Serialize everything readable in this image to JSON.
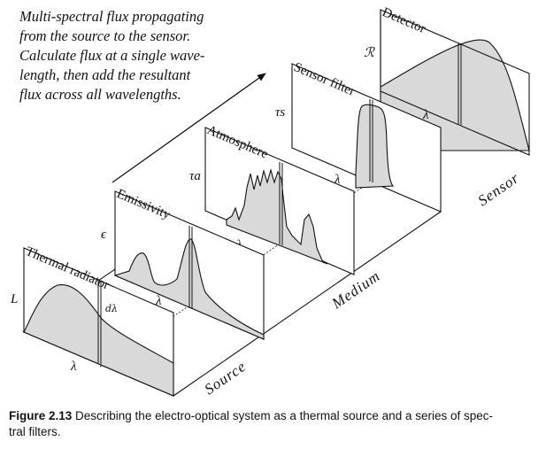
{
  "note": {
    "lines": [
      "Multi-spectral flux propagating",
      "from the source to the sensor.",
      "Calculate flux at a single wave-",
      "length, then add the resultant",
      "flux across all wavelengths."
    ]
  },
  "panels": {
    "thermal_radiator": {
      "title": "Thermal radiator",
      "y_symbol": "L",
      "x_symbol": "λ",
      "slice_symbol": "dλ"
    },
    "emissivity": {
      "title": "Emissivity",
      "y_symbol": "ϵ",
      "x_symbol": "λ"
    },
    "atmosphere": {
      "title": "Atmosphere",
      "y_symbol": "τa",
      "x_symbol": "λ"
    },
    "sensor_filter": {
      "title": "Sensor filter",
      "y_symbol": "τs",
      "x_symbol": "λ"
    },
    "detector": {
      "title": "Detector",
      "y_symbol": "ℛ",
      "x_symbol": "λ"
    }
  },
  "stages": {
    "source": "Source",
    "medium": "Medium",
    "sensor": "Sensor"
  },
  "caption": {
    "label": "Figure 2.13",
    "line1": " Describing the electro-optical system as a thermal source and a series of spec-",
    "line2": "tral filters."
  },
  "colors": {
    "ink": "#111111",
    "fill": "#d9d9d9"
  }
}
